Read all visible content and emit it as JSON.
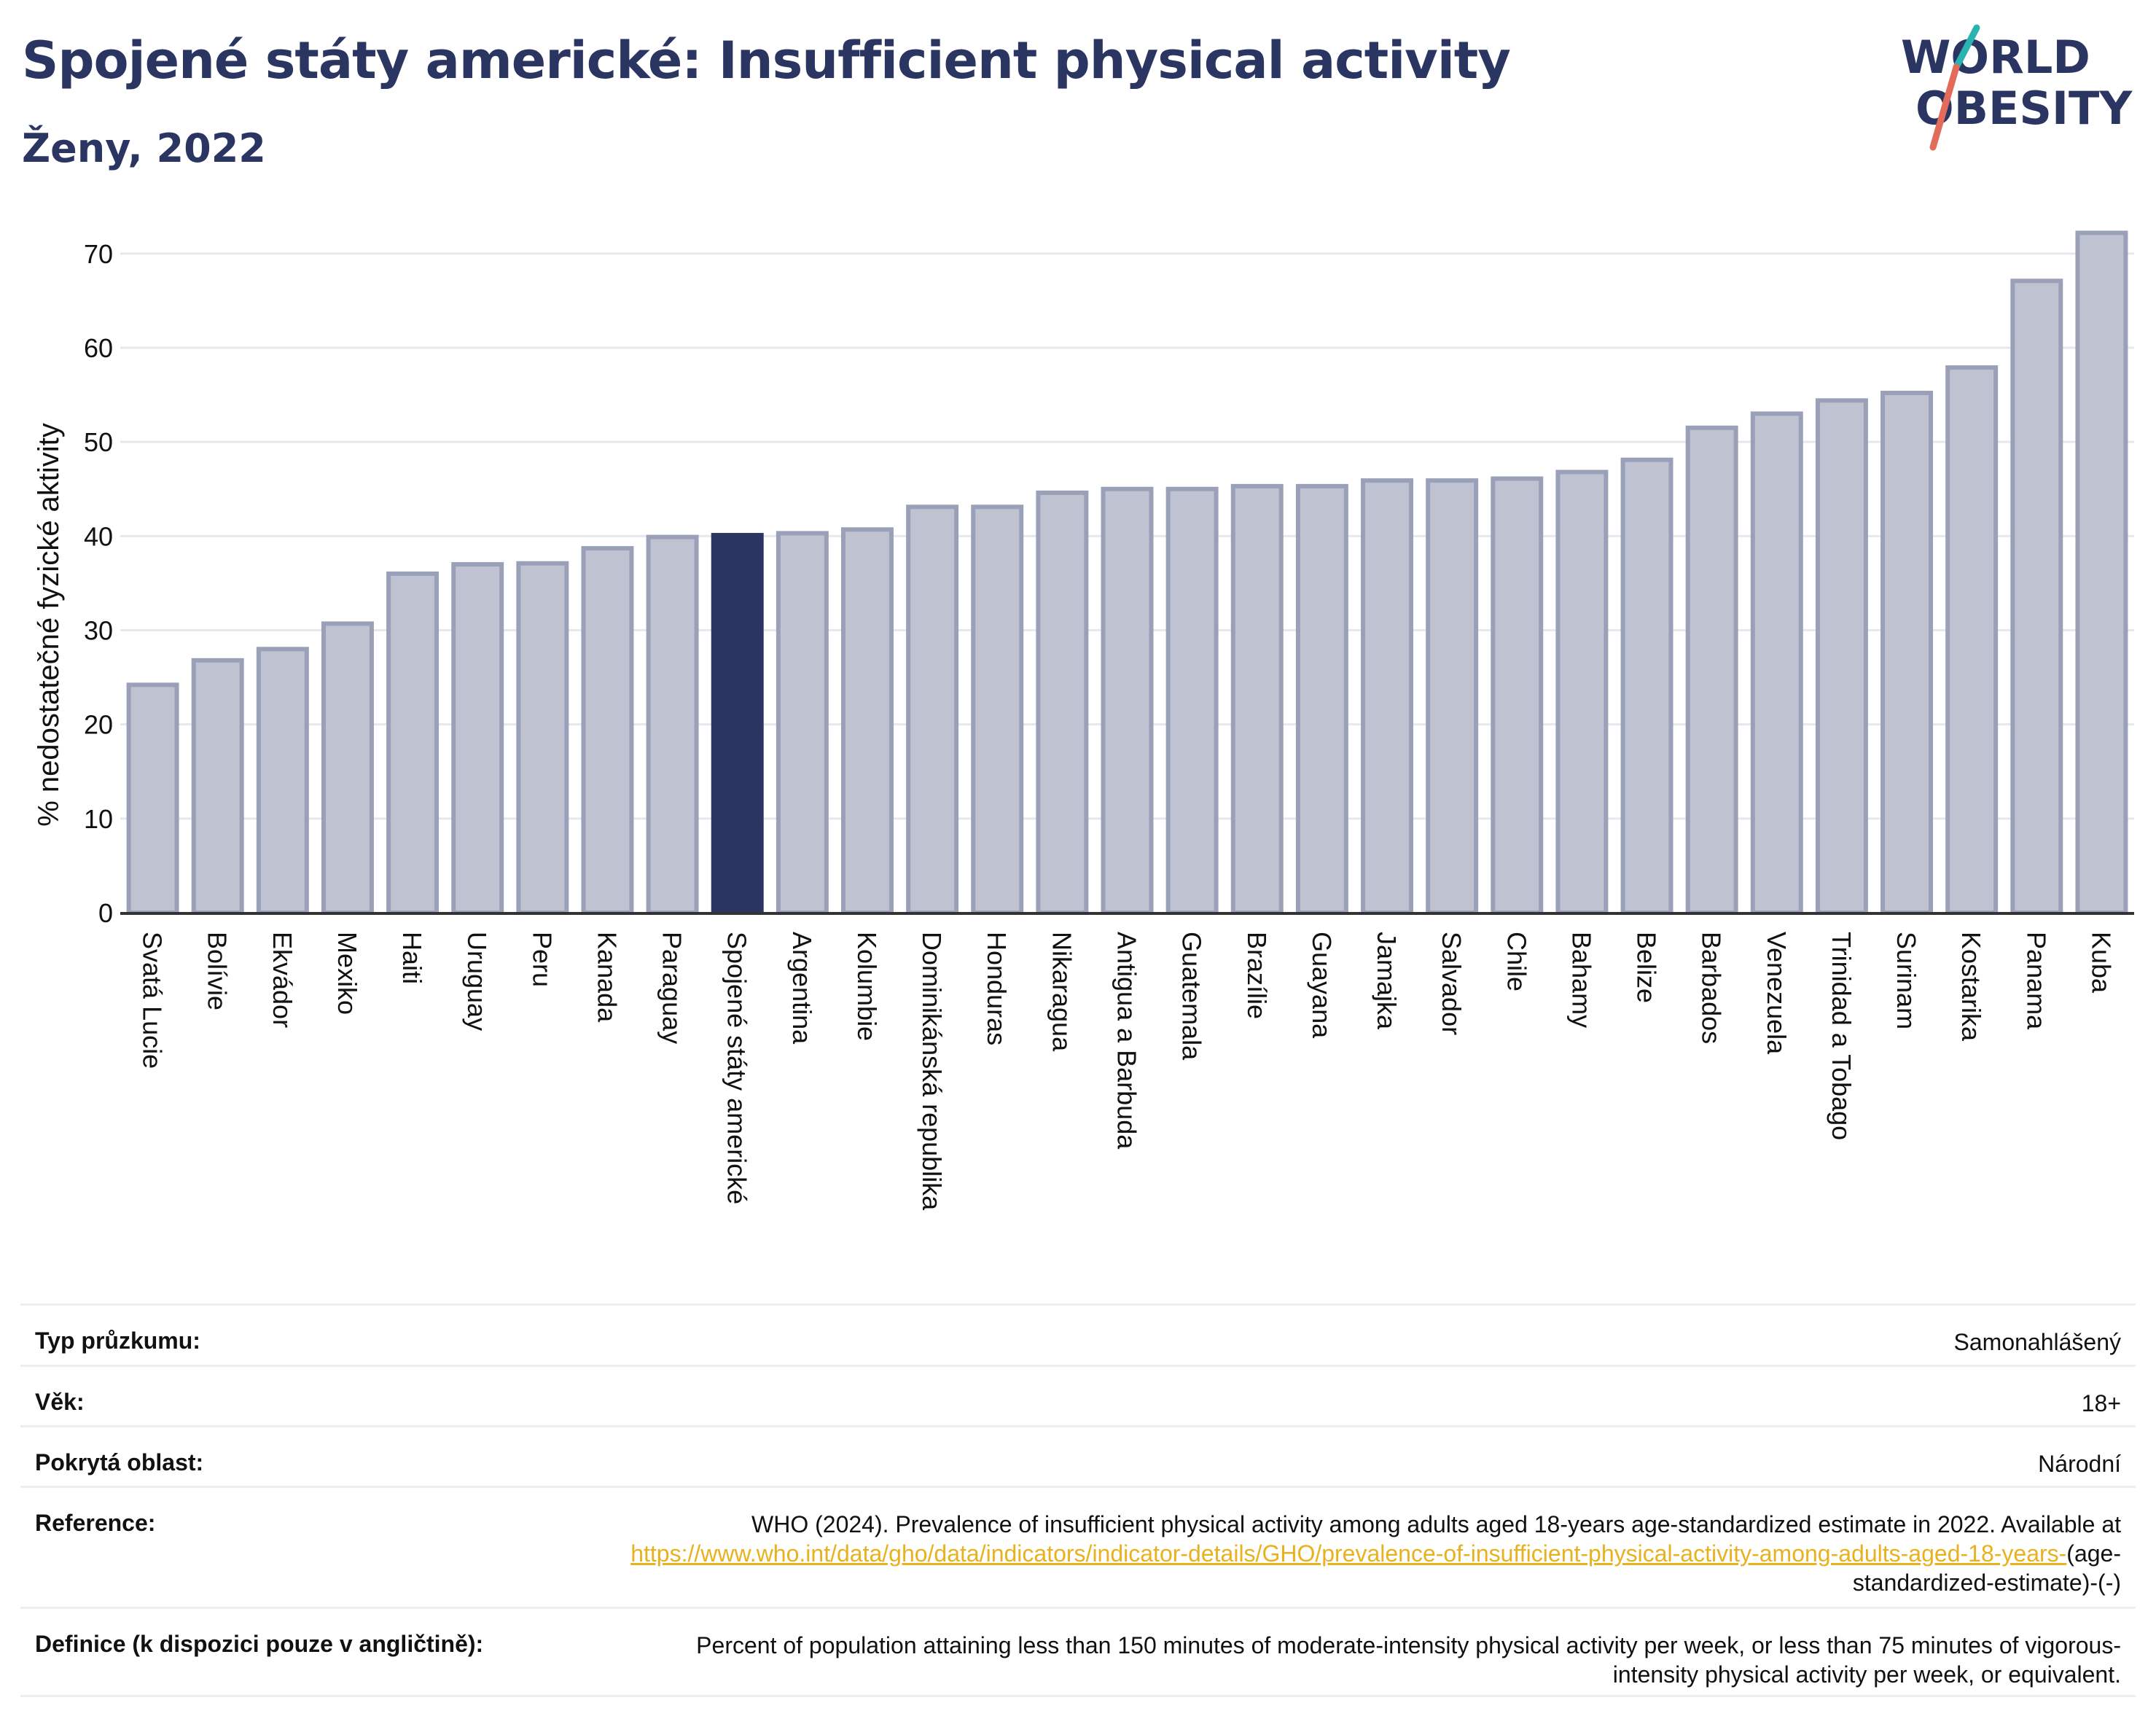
{
  "header": {
    "title": "Spojené státy americké: Insufficient physical activity",
    "subtitle": "Ženy, 2022"
  },
  "logo": {
    "line1": "WORLD",
    "line2": "OBESITY",
    "colors": {
      "text": "#2b3561",
      "slash_teal": "#2ab3b1",
      "slash_red": "#e36b5a"
    }
  },
  "chart_data": {
    "type": "bar",
    "title": "",
    "xlabel": "",
    "ylabel": "% nedostatečné fyzické aktivity",
    "ylim": [
      0,
      72
    ],
    "yticks": [
      0,
      10,
      20,
      30,
      40,
      50,
      60,
      70
    ],
    "grid": true,
    "highlight": "Spojené státy americké",
    "colors": {
      "bar": "#bfc2d0",
      "bar_border": "#9aa0b8",
      "highlight": "#2b3561"
    },
    "categories": [
      "Svatá Lucie",
      "Bolívie",
      "Ekvádor",
      "Mexiko",
      "Haiti",
      "Uruguay",
      "Peru",
      "Kanada",
      "Paraguay",
      "Spojené státy americké",
      "Argentina",
      "Kolumbie",
      "Dominikánská republika",
      "Honduras",
      "Nikaragua",
      "Antigua a Barbuda",
      "Guatemala",
      "Brazílie",
      "Guayana",
      "Jamajka",
      "Salvador",
      "Chile",
      "Bahamy",
      "Belize",
      "Barbados",
      "Venezuela",
      "Trinidad a Tobago",
      "Surinam",
      "Kostarika",
      "Panama",
      "Kuba"
    ],
    "values": [
      24.2,
      26.8,
      28.0,
      30.7,
      36.0,
      37.0,
      37.1,
      38.7,
      39.9,
      40.1,
      40.3,
      40.7,
      43.1,
      43.1,
      44.6,
      45.0,
      45.0,
      45.3,
      45.3,
      45.9,
      45.9,
      46.1,
      46.8,
      48.1,
      51.5,
      53.0,
      54.4,
      55.2,
      57.9,
      67.1,
      72.2
    ]
  },
  "meta": {
    "survey_type": {
      "label": "Typ průzkumu:",
      "value": "Samonahlášený"
    },
    "age": {
      "label": "Věk:",
      "value": "18+"
    },
    "coverage": {
      "label": "Pokrytá oblast:",
      "value": "Národní"
    },
    "reference": {
      "label": "Reference:",
      "text_before": "WHO (2024). Prevalence of insufficient physical activity among adults aged 18-years age-standardized estimate in 2022. Available at",
      "link": "https://www.who.int/data/gho/data/indicators/indicator-details/GHO/prevalence-of-insufficient-physical-activity-among-adults-aged-18-years-",
      "text_after": "(age-standardized-estimate)-(-)"
    },
    "definition": {
      "label": "Definice (k dispozici pouze v angličtině):",
      "value": "Percent of population attaining less than 150 minutes of moderate-intensity physical activity per week, or less than 75 minutes of vigorous-intensity physical activity per week, or equivalent."
    }
  }
}
